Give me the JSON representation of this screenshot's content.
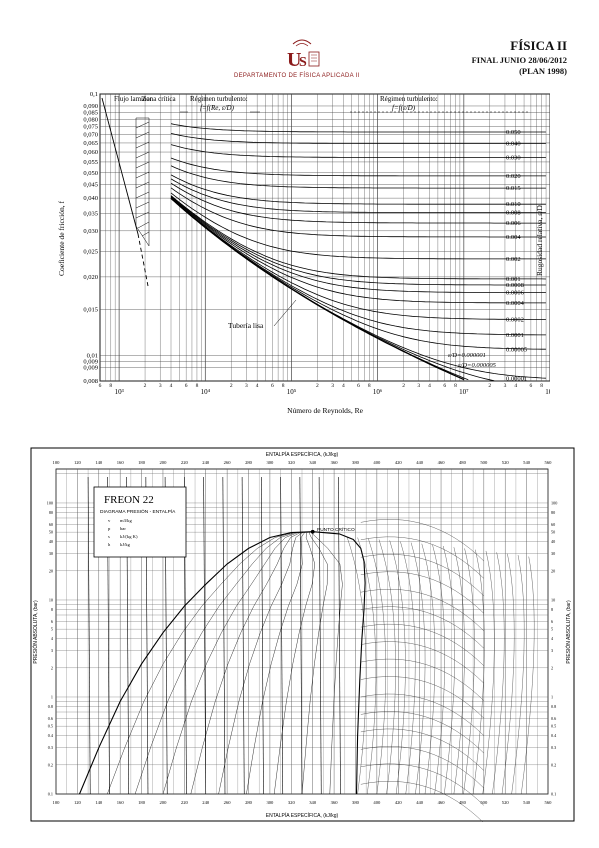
{
  "header": {
    "department": "DEPARTAMENTO DE FÍSICA APLICADA II",
    "subject": "FÍSICA II",
    "exam_line": "FINAL JUNIO 28/06/2012",
    "plan_line": "(PLAN 1998)"
  },
  "moody": {
    "ylabel": "Coeficiente de fricción, f",
    "ylabel_right": "Rugosidad relativa, ε/D",
    "xlabel": "Número de Reynolds, Re",
    "regions": {
      "laminar": "Flujo laminar",
      "critical": "Zona crítica",
      "transition": "Régimen turbulento:",
      "transition_eq": "f=f(Re, ε/D)",
      "turbulent": "Régimen turbulento:",
      "turbulent_eq": "f=f(ε/D)"
    },
    "smooth_label": "Tubería lisa",
    "eps_label_1": "ε/D=0.000001",
    "eps_label_2": "ε/D=0.000005",
    "f_ticks": [
      "0,1",
      "0,090",
      "0,085",
      "0,080",
      "0,075",
      "0,070",
      "0,065",
      "0,060",
      "0,055",
      "0,050",
      "0,045",
      "0,040",
      "0,035",
      "0,030",
      "0,025",
      "0,020",
      "0,015",
      "0,01",
      "0,009",
      "0,009",
      "0,008"
    ],
    "eps_ticks": [
      "0.050",
      "0.040",
      "0.030",
      "0.020",
      "0.015",
      "0.010",
      "0.008",
      "0.006",
      "0.004",
      "0.002",
      "0.001",
      "0.0008",
      "0.0006",
      "0.0004",
      "0.0002",
      "0.0001",
      "0.00005",
      "0.00001"
    ],
    "re_ticks": [
      "10³",
      "10⁴",
      "10⁵",
      "10⁶",
      "10⁷",
      "10⁸"
    ],
    "re_minor": [
      "2",
      "3",
      "4",
      "6",
      "8"
    ]
  },
  "freon": {
    "title": "FREON 22",
    "subtitle": "DIAGRAMA PRESIÓN - ENTALPÍA",
    "legend": [
      {
        "sym": "v",
        "unit": "m3/kg"
      },
      {
        "sym": "p",
        "unit": "bar"
      },
      {
        "sym": "s",
        "unit": "kJ/(kg K)"
      },
      {
        "sym": "h",
        "unit": "kJ/kg"
      }
    ],
    "xlabel_top": "ENTALPÍA ESPECÍFICA, (kJ/kg)",
    "xlabel_bottom": "ENTALPÍA ESPECÍFICA, (kJ/kg)",
    "ylabel": "PRESIÓN ABSOLUTA, (bar)",
    "critical_point": "PUNTO CRÍTICO",
    "h_ticks": [
      "100",
      "120",
      "140",
      "160",
      "180",
      "200",
      "220",
      "240",
      "260",
      "280",
      "300",
      "320",
      "340",
      "360",
      "380",
      "400",
      "420",
      "440",
      "460",
      "480",
      "500",
      "520",
      "540",
      "560"
    ],
    "p_ticks": [
      "100",
      "80",
      "60",
      "50",
      "40",
      "30",
      "20",
      "10",
      "8",
      "6",
      "5",
      "4",
      "3",
      "2",
      "1",
      "0.8",
      "0.6",
      "0.5",
      "0.4",
      "0.3",
      "0.2",
      "0.1"
    ]
  }
}
